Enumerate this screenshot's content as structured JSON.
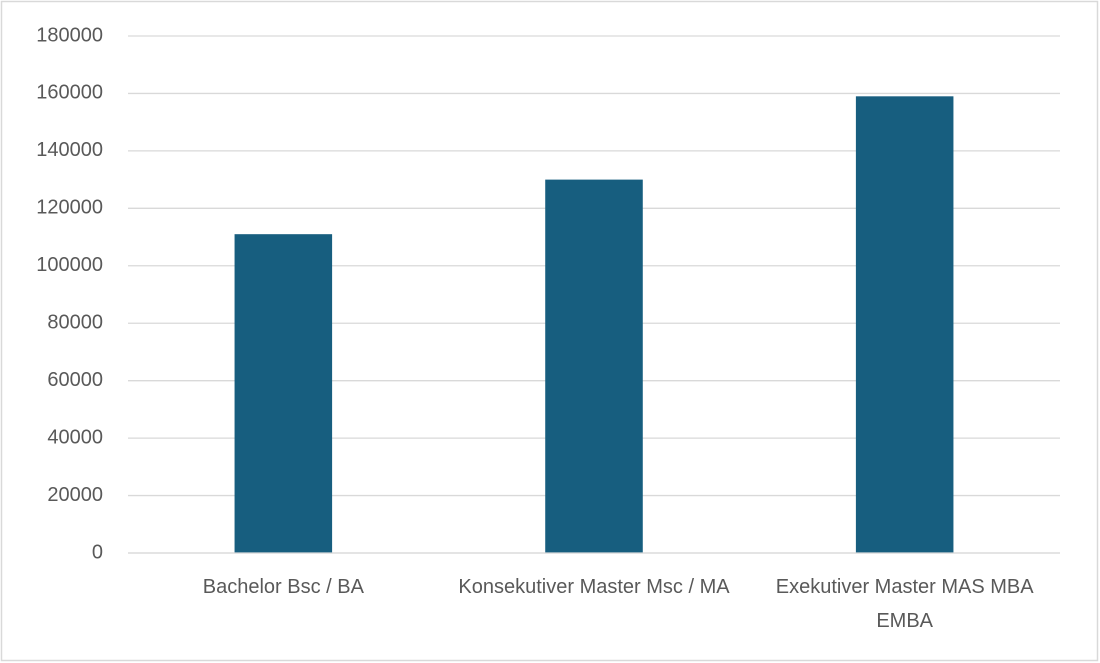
{
  "chart_data": {
    "type": "bar",
    "categories": [
      "Bachelor Bsc / BA",
      "Konsekutiver Master Msc / MA",
      "Exekutiver Master MAS MBA EMBA"
    ],
    "values": [
      111000,
      130000,
      159000
    ],
    "color": "#175e7f",
    "ylim": [
      0,
      180000
    ],
    "yticks": [
      0,
      20000,
      40000,
      60000,
      80000,
      100000,
      120000,
      140000,
      160000,
      180000
    ],
    "grid": true
  }
}
